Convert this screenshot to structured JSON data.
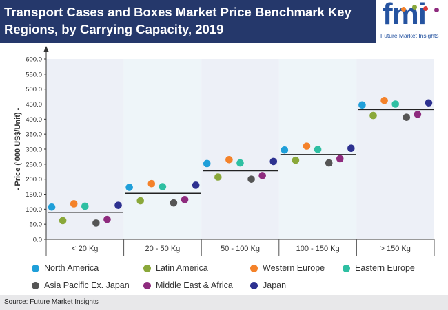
{
  "header": {
    "title": "Transport Cases and Boxes Market Price Benchmark Key Regions, by Carrying Capacity, 2019"
  },
  "logo": {
    "name": "fmi",
    "tagline": "Future Market Insights",
    "color": "#2553a0"
  },
  "footer": {
    "source": "Source: Future Market Insights"
  },
  "chart_data": {
    "type": "scatter",
    "title": "Transport Cases and Boxes Market Price Benchmark Key Regions, by Carrying Capacity, 2019",
    "ylabel": "- Price ('000 US$/Unit) -",
    "xlabel": "",
    "ylim": [
      0,
      600
    ],
    "ytick_step": 50,
    "yticks": [
      "0.0",
      "50.0",
      "100.0",
      "150.0",
      "200.0",
      "250.0",
      "300.0",
      "350.0",
      "400.0",
      "450.0",
      "500.0",
      "550.0",
      "600.0"
    ],
    "categories": [
      "< 20 Kg",
      "20 - 50 Kg",
      "50 - 100 Kg",
      "100 - 150 Kg",
      "> 150 Kg"
    ],
    "benchmark_lines": [
      90,
      153,
      228,
      282,
      432
    ],
    "band_colors": [
      "#edf0f7",
      "#eef5f9"
    ],
    "series": [
      {
        "name": "North America",
        "color": "#1f9fd9",
        "values": [
          107,
          173,
          252,
          297,
          447
        ]
      },
      {
        "name": "Latin America",
        "color": "#8aa83a",
        "values": [
          62,
          128,
          207,
          263,
          412
        ]
      },
      {
        "name": "Western Europe",
        "color": "#f4822a",
        "values": [
          118,
          185,
          265,
          310,
          462
        ]
      },
      {
        "name": "Eastern Europe",
        "color": "#2ebfa2",
        "values": [
          110,
          175,
          254,
          299,
          450
        ]
      },
      {
        "name": "Asia Pacific Ex. Japan",
        "color": "#555555",
        "values": [
          54,
          121,
          200,
          254,
          406
        ]
      },
      {
        "name": "Middle East & Africa",
        "color": "#8e2b7e",
        "values": [
          66,
          132,
          212,
          268,
          416
        ]
      },
      {
        "name": "Japan",
        "color": "#2d3190",
        "values": [
          113,
          180,
          259,
          303,
          454
        ]
      }
    ]
  }
}
